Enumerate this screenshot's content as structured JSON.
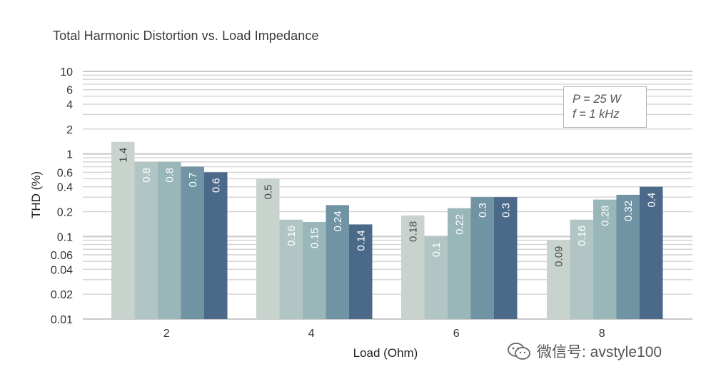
{
  "chart_data": {
    "type": "bar",
    "title": "Total Harmonic Distortion vs. Load Impedance",
    "xlabel": "Load (Ohm)",
    "ylabel": "THD (%)",
    "yscale": "log",
    "ylim": [
      0.01,
      10
    ],
    "ytick_labels": [
      "10",
      "6",
      "4",
      "2",
      "1",
      "0.6",
      "0.4",
      "0.2",
      "0.1",
      "0.06",
      "0.04",
      "0.02",
      "0.01"
    ],
    "categories": [
      "2",
      "4",
      "6",
      "8"
    ],
    "series": [
      {
        "values": [
          1.4,
          0.5,
          0.18,
          0.09
        ],
        "color": "#c9d3cd"
      },
      {
        "values": [
          0.8,
          0.16,
          0.1,
          0.16
        ],
        "color": "#b1c6c4"
      },
      {
        "values": [
          0.8,
          0.15,
          0.22,
          0.28
        ],
        "color": "#99b6b9"
      },
      {
        "values": [
          0.7,
          0.24,
          0.3,
          0.32
        ],
        "color": "#7194a4"
      },
      {
        "values": [
          0.6,
          0.14,
          0.3,
          0.4
        ],
        "color": "#4b6a89"
      }
    ],
    "data_labels": [
      [
        "1.4",
        "0.8",
        "0.8",
        "0.7",
        "0.6"
      ],
      [
        "0.5",
        "0.16",
        "0.15",
        "0.24",
        "0.14"
      ],
      [
        "0.18",
        "0.1",
        "0.22",
        "0.3",
        "0.3"
      ],
      [
        "0.09",
        "0.16",
        "0.28",
        "0.32",
        "0.4"
      ]
    ],
    "grid": true,
    "annotation": [
      "P = 25 W",
      "f = 1 kHz"
    ]
  },
  "watermark": {
    "text": "微信号: avstyle100",
    "icon": "wechat-icon"
  }
}
